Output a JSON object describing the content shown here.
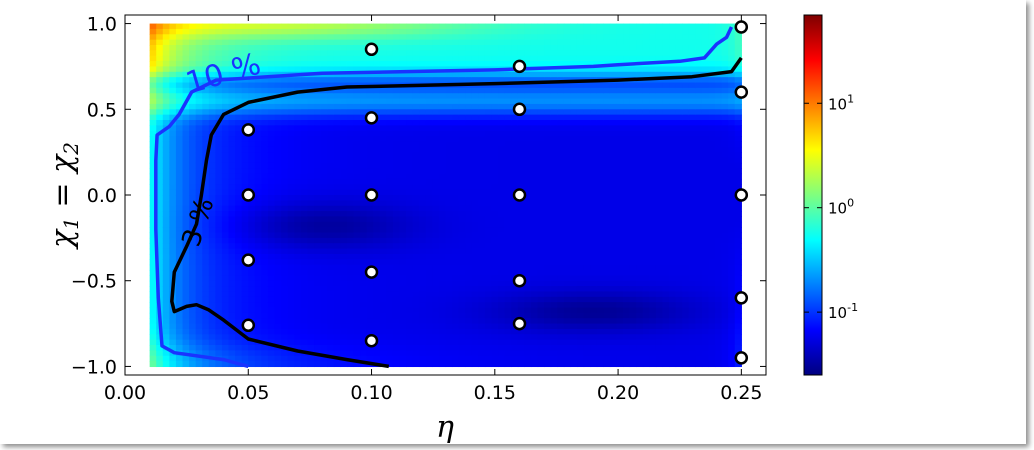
{
  "chart_data": {
    "type": "heatmap",
    "xlabel": "η",
    "ylabel": {
      "chi1": "χ",
      "sub1": "1",
      "eq": " = ",
      "chi2": "χ",
      "sub2": "2"
    },
    "xlim": [
      0.0,
      0.26
    ],
    "ylim": [
      -1.05,
      1.05
    ],
    "x_ticks": [
      "0.00",
      "0.05",
      "0.10",
      "0.15",
      "0.20",
      "0.25"
    ],
    "x_tick_values": [
      0.0,
      0.05,
      0.1,
      0.15,
      0.2,
      0.25
    ],
    "y_ticks": [
      "1.0",
      "0.5",
      "0.0",
      "−0.5",
      "−1.0"
    ],
    "y_tick_values": [
      1.0,
      0.5,
      0.0,
      -0.5,
      -1.0
    ],
    "data_extent": {
      "x": [
        0.01,
        0.25
      ],
      "y": [
        -1.0,
        1.0
      ]
    },
    "colormap": "jet",
    "colorbar": {
      "scale": "log",
      "range": [
        0.025,
        70
      ],
      "ticks": [
        {
          "base": "10",
          "exp": "1",
          "value": 10
        },
        {
          "base": "10",
          "exp": "0",
          "value": 1
        },
        {
          "base": "10",
          "exp": "-1",
          "value": 0.1
        }
      ]
    },
    "contours": [
      {
        "label": "10 %",
        "color": "#1a33ff",
        "label_at": [
          0.04,
          0.7
        ],
        "points": [
          [
            0.05,
            -1.0
          ],
          [
            0.04,
            -0.96
          ],
          [
            0.02,
            -0.92
          ],
          [
            0.015,
            -0.88
          ],
          [
            0.0135,
            -0.6
          ],
          [
            0.0125,
            -0.2
          ],
          [
            0.0125,
            0.2
          ],
          [
            0.013,
            0.35
          ],
          [
            0.018,
            0.4
          ],
          [
            0.022,
            0.47
          ],
          [
            0.027,
            0.6
          ],
          [
            0.037,
            0.67
          ],
          [
            0.08,
            0.71
          ],
          [
            0.15,
            0.73
          ],
          [
            0.19,
            0.75
          ],
          [
            0.2,
            0.76
          ],
          [
            0.225,
            0.78
          ],
          [
            0.235,
            0.8
          ],
          [
            0.24,
            0.88
          ],
          [
            0.244,
            0.92
          ],
          [
            0.246,
            0.98
          ]
        ]
      },
      {
        "label": "3 %",
        "color": "#000000",
        "label_at": [
          0.03,
          -0.16
        ],
        "points": [
          [
            0.107,
            -1.0
          ],
          [
            0.09,
            -0.96
          ],
          [
            0.07,
            -0.91
          ],
          [
            0.05,
            -0.84
          ],
          [
            0.04,
            -0.73
          ],
          [
            0.034,
            -0.67
          ],
          [
            0.029,
            -0.64
          ],
          [
            0.025,
            -0.65
          ],
          [
            0.02,
            -0.68
          ],
          [
            0.019,
            -0.62
          ],
          [
            0.02,
            -0.45
          ],
          [
            0.025,
            -0.3
          ],
          [
            0.029,
            -0.17
          ],
          [
            0.031,
            0.0
          ],
          [
            0.033,
            0.2
          ],
          [
            0.035,
            0.35
          ],
          [
            0.04,
            0.47
          ],
          [
            0.05,
            0.54
          ],
          [
            0.07,
            0.6
          ],
          [
            0.09,
            0.63
          ],
          [
            0.15,
            0.65
          ],
          [
            0.2,
            0.67
          ],
          [
            0.23,
            0.69
          ],
          [
            0.246,
            0.72
          ],
          [
            0.25,
            0.8
          ]
        ]
      }
    ],
    "points": [
      [
        0.05,
        0.38
      ],
      [
        0.05,
        0.0
      ],
      [
        0.05,
        -0.38
      ],
      [
        0.05,
        -0.76
      ],
      [
        0.1,
        0.85
      ],
      [
        0.1,
        0.45
      ],
      [
        0.1,
        0.0
      ],
      [
        0.1,
        -0.45
      ],
      [
        0.1,
        -0.85
      ],
      [
        0.16,
        0.75
      ],
      [
        0.16,
        0.5
      ],
      [
        0.16,
        0.0
      ],
      [
        0.16,
        -0.5
      ],
      [
        0.16,
        -0.75
      ],
      [
        0.25,
        0.98
      ],
      [
        0.25,
        0.6
      ],
      [
        0.25,
        0.0
      ],
      [
        0.25,
        -0.6
      ],
      [
        0.25,
        -0.95
      ]
    ]
  }
}
